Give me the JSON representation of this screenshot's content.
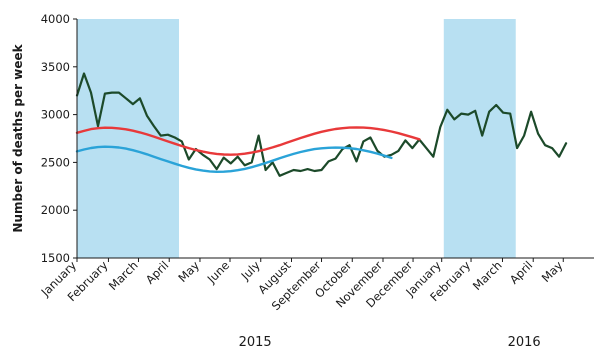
{
  "chart_data": {
    "type": "line",
    "title": "",
    "xlabel": "",
    "ylabel": "Number of deaths per week",
    "ylim": [
      1500,
      4000
    ],
    "yticks": [
      1500,
      2000,
      2500,
      3000,
      3500,
      4000
    ],
    "grid": false,
    "x_unit": "week",
    "x_range": [
      1,
      75
    ],
    "month_labels": [
      {
        "label": "January",
        "week": 1
      },
      {
        "label": "February",
        "week": 5.5
      },
      {
        "label": "March",
        "week": 9.8
      },
      {
        "label": "April",
        "week": 14.2
      },
      {
        "label": "May",
        "week": 18.6
      },
      {
        "label": "June",
        "week": 22.9
      },
      {
        "label": "July",
        "week": 27.3
      },
      {
        "label": "August",
        "week": 31.7
      },
      {
        "label": "September",
        "week": 36.0
      },
      {
        "label": "October",
        "week": 40.4
      },
      {
        "label": "November",
        "week": 44.8
      },
      {
        "label": "December",
        "week": 49.1
      },
      {
        "label": "January",
        "week": 53.2
      },
      {
        "label": "February",
        "week": 57.4
      },
      {
        "label": "March",
        "week": 61.9
      },
      {
        "label": "April",
        "week": 66.3
      },
      {
        "label": "May",
        "week": 70.6
      }
    ],
    "year_labels": [
      {
        "label": "2015",
        "week": 26.5
      },
      {
        "label": "2016",
        "week": 65.0
      }
    ],
    "shaded_periods": [
      {
        "start_week": 1,
        "end_week": 15.6,
        "color": "#b8e0f2"
      },
      {
        "start_week": 53.5,
        "end_week": 63.8,
        "color": "#b8e0f2"
      }
    ],
    "series": [
      {
        "color": "#1c4a2a",
        "values": [
          3200,
          3430,
          3230,
          2880,
          3220,
          3230,
          3230,
          3170,
          3110,
          3170,
          2990,
          2880,
          2780,
          2790,
          2760,
          2720,
          2530,
          2640,
          2580,
          2530,
          2430,
          2550,
          2490,
          2560,
          2470,
          2500,
          2780,
          2420,
          2500,
          2360,
          2390,
          2420,
          2410,
          2430,
          2410,
          2420,
          2510,
          2540,
          2640,
          2680,
          2510,
          2720,
          2760,
          2620,
          2560,
          2580,
          2620,
          2730,
          2650,
          2740,
          2650,
          2560,
          2870,
          3050,
          2950,
          3010,
          3000,
          3040,
          2780,
          3030,
          3100,
          3020,
          3010,
          2650,
          2780,
          3030,
          2800,
          2680,
          2650,
          2560,
          2700
        ]
      },
      {
        "color": "#e8393a",
        "values": [
          2810,
          2830,
          2848,
          2858,
          2863,
          2862,
          2856,
          2846,
          2832,
          2814,
          2793,
          2770,
          2745,
          2720,
          2696,
          2672,
          2650,
          2630,
          2613,
          2599,
          2589,
          2583,
          2581,
          2584,
          2591,
          2602,
          2617,
          2636,
          2657,
          2680,
          2705,
          2730,
          2755,
          2778,
          2800,
          2820,
          2836,
          2849,
          2858,
          2864,
          2866,
          2864,
          2859,
          2850,
          2838,
          2823,
          2805,
          2785,
          2764,
          2742
        ]
      },
      {
        "color": "#2aa3d8",
        "values": [
          2615,
          2635,
          2651,
          2660,
          2664,
          2662,
          2656,
          2644,
          2628,
          2608,
          2585,
          2560,
          2535,
          2510,
          2486,
          2463,
          2443,
          2427,
          2414,
          2406,
          2402,
          2403,
          2408,
          2418,
          2432,
          2450,
          2471,
          2494,
          2518,
          2543,
          2567,
          2589,
          2609,
          2626,
          2639,
          2648,
          2653,
          2655,
          2654,
          2649,
          2640,
          2627,
          2611,
          2592,
          2570,
          2547
        ]
      }
    ]
  }
}
